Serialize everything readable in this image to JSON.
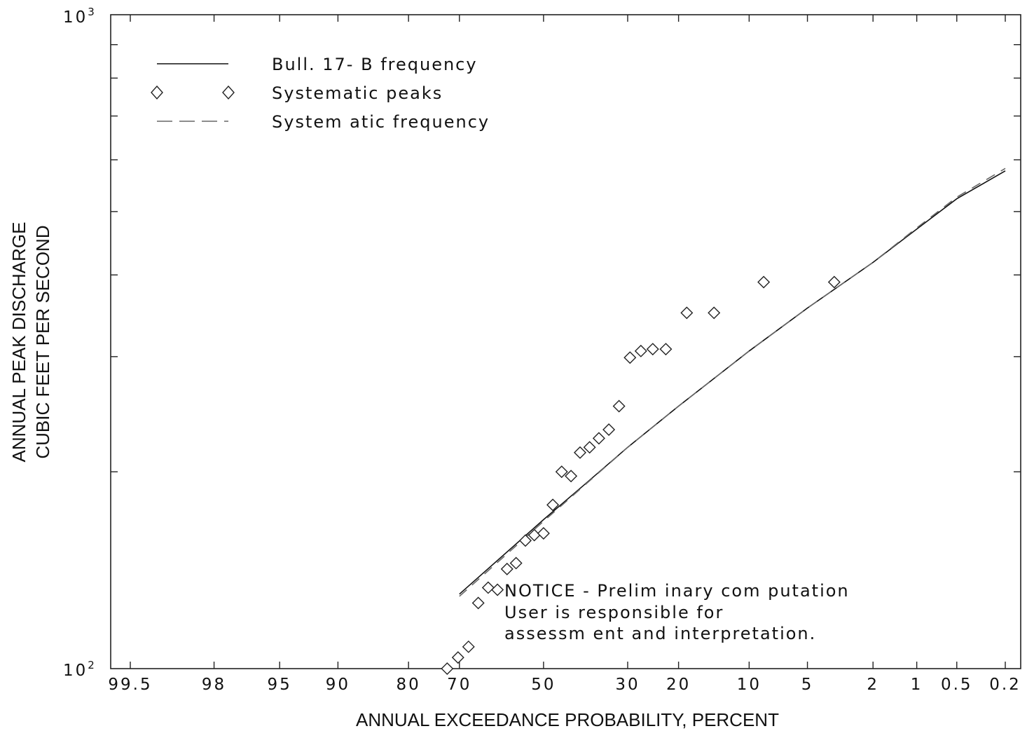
{
  "chart_data": {
    "type": "scatter",
    "xlabel": "ANNUAL EXCEEDANCE PROBABILITY, PERCENT",
    "ylabel": [
      "ANNUAL PEAK DISCHARGE",
      "CUBIC FEET PER SECOND"
    ],
    "x_scale": "normal-probability",
    "y_scale": "log",
    "ylim": [
      100,
      1000
    ],
    "y_ticks": [
      {
        "base": "10",
        "exp": "2",
        "value": 100
      },
      {
        "base": "10",
        "exp": "3",
        "value": 1000
      }
    ],
    "x_ticks": [
      "99.5",
      "98",
      "95",
      "90",
      "80",
      "70",
      "50",
      "30",
      "20",
      "10",
      "5",
      "2",
      "1",
      "0.5",
      "0.2"
    ],
    "x_tick_values": [
      99.5,
      98,
      95,
      90,
      80,
      70,
      50,
      30,
      20,
      10,
      5,
      2,
      1,
      0.5,
      0.2
    ],
    "legend": {
      "placement": "top-left",
      "entries": [
        {
          "label": "Bull. 17- B frequency",
          "style": "solid-line"
        },
        {
          "label": "Systematic peaks",
          "style": "diamond-marker"
        },
        {
          "label": "System atic frequency",
          "style": "dashed-line"
        }
      ]
    },
    "series": [
      {
        "name": "Bull. 17- B frequency",
        "kind": "line",
        "points": [
          [
            70,
            130
          ],
          [
            50,
            169
          ],
          [
            40,
            191
          ],
          [
            30,
            218
          ],
          [
            20,
            252
          ],
          [
            10,
            306
          ],
          [
            5,
            356
          ],
          [
            2,
            418
          ],
          [
            1,
            470
          ],
          [
            0.5,
            523
          ],
          [
            0.2,
            577
          ]
        ]
      },
      {
        "name": "Systematic peaks",
        "kind": "scatter",
        "points": [
          [
            72.6,
            100
          ],
          [
            70.3,
            104
          ],
          [
            68.0,
            108
          ],
          [
            65.8,
            126
          ],
          [
            63.5,
            133
          ],
          [
            61.3,
            132
          ],
          [
            59.0,
            142
          ],
          [
            56.8,
            145
          ],
          [
            54.5,
            157
          ],
          [
            52.3,
            160
          ],
          [
            50.0,
            161
          ],
          [
            47.7,
            178
          ],
          [
            45.5,
            200
          ],
          [
            43.2,
            197
          ],
          [
            41.0,
            214
          ],
          [
            38.7,
            218
          ],
          [
            36.5,
            225
          ],
          [
            34.2,
            232
          ],
          [
            31.9,
            252
          ],
          [
            29.5,
            299
          ],
          [
            27.2,
            306
          ],
          [
            24.8,
            308
          ],
          [
            22.3,
            308
          ],
          [
            18.6,
            350
          ],
          [
            14.4,
            350
          ],
          [
            8.5,
            390
          ],
          [
            3.5,
            390
          ]
        ]
      },
      {
        "name": "System atic frequency",
        "kind": "dashed-line",
        "points": [
          [
            70,
            129
          ],
          [
            50,
            168
          ],
          [
            30,
            218
          ],
          [
            20,
            252
          ],
          [
            10,
            306
          ],
          [
            5,
            356
          ],
          [
            2,
            418
          ],
          [
            1,
            472
          ],
          [
            0.5,
            526
          ],
          [
            0.2,
            582
          ]
        ]
      }
    ],
    "annotation": {
      "lines": [
        "NOTICE -  Prelim inary com putation",
        "User is responsible for",
        "assessm ent and interpretation."
      ]
    }
  }
}
